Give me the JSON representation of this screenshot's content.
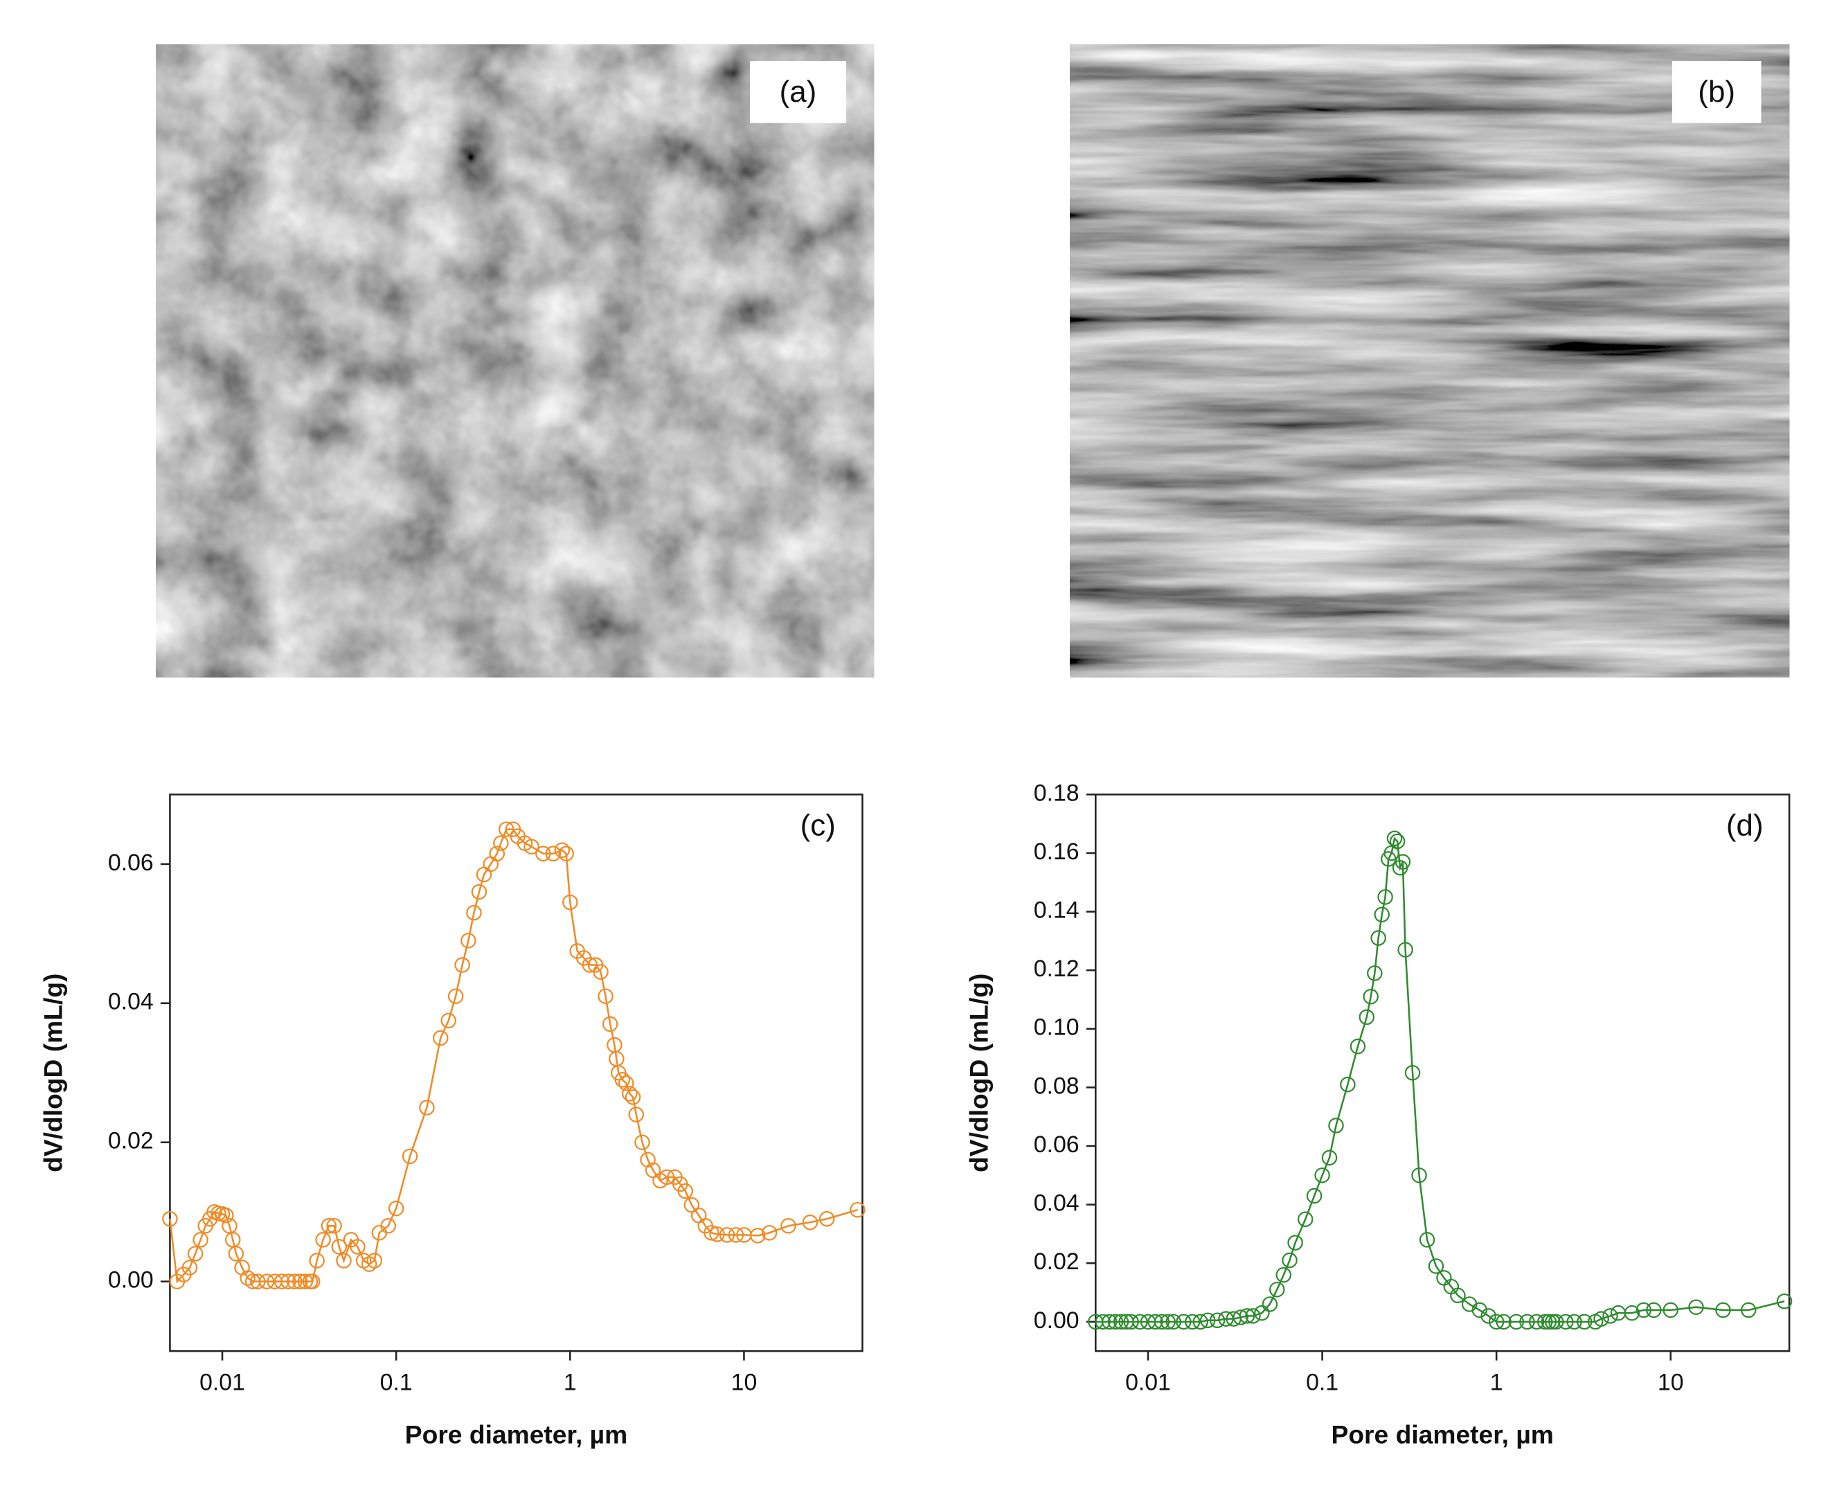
{
  "images": [
    {
      "label": "(a)"
    },
    {
      "label": "(b)"
    }
  ],
  "chart_data": [
    {
      "type": "line",
      "annotation": "(c)",
      "x_label": "Pore diameter, µm",
      "y_label": "dV/dlogD (mL/g)",
      "xscale": "log",
      "marker": "open-circle",
      "color": "#f08a24",
      "xlim": [
        0.005,
        48
      ],
      "ylim": [
        -0.01,
        0.07
      ],
      "xticks": [
        0.01,
        0.1,
        1,
        10
      ],
      "yticks": [
        {
          "value": 0,
          "label": "0.00"
        },
        0.02,
        0.04,
        0.06
      ],
      "x": [
        0.005,
        0.0055,
        0.006,
        0.0065,
        0.007,
        0.0075,
        0.008,
        0.0085,
        0.009,
        0.0095,
        0.01,
        0.0105,
        0.011,
        0.0115,
        0.012,
        0.013,
        0.014,
        0.015,
        0.016,
        0.018,
        0.02,
        0.022,
        0.024,
        0.026,
        0.028,
        0.03,
        0.032,
        0.033,
        0.035,
        0.038,
        0.041,
        0.044,
        0.047,
        0.05,
        0.055,
        0.06,
        0.065,
        0.07,
        0.075,
        0.08,
        0.09,
        0.1,
        0.12,
        0.15,
        0.18,
        0.2,
        0.22,
        0.24,
        0.26,
        0.28,
        0.3,
        0.32,
        0.35,
        0.38,
        0.4,
        0.43,
        0.47,
        0.5,
        0.55,
        0.6,
        0.7,
        0.8,
        0.9,
        0.95,
        1.0,
        1.1,
        1.2,
        1.3,
        1.4,
        1.5,
        1.6,
        1.7,
        1.8,
        1.85,
        1.9,
        2.0,
        2.1,
        2.2,
        2.3,
        2.4,
        2.6,
        2.8,
        3.0,
        3.3,
        3.6,
        4.0,
        4.3,
        4.6,
        5.0,
        5.5,
        6.0,
        6.5,
        7,
        8,
        9,
        10,
        12,
        14,
        18,
        24,
        30,
        45
      ],
      "values": [
        0.009,
        0.0,
        0.001,
        0.002,
        0.004,
        0.006,
        0.008,
        0.009,
        0.01,
        0.0098,
        0.0097,
        0.0095,
        0.008,
        0.006,
        0.004,
        0.002,
        0.0005,
        0.0,
        0.0,
        0.0,
        0.0,
        0.0,
        0.0,
        0.0,
        0.0,
        0.0,
        0.0,
        0.0,
        0.003,
        0.006,
        0.008,
        0.008,
        0.005,
        0.003,
        0.006,
        0.005,
        0.003,
        0.0025,
        0.003,
        0.007,
        0.008,
        0.0105,
        0.018,
        0.025,
        0.035,
        0.0375,
        0.041,
        0.0455,
        0.049,
        0.053,
        0.056,
        0.0585,
        0.06,
        0.0615,
        0.063,
        0.065,
        0.065,
        0.064,
        0.063,
        0.0625,
        0.0615,
        0.0615,
        0.062,
        0.0615,
        0.0545,
        0.0475,
        0.0465,
        0.0455,
        0.0455,
        0.0445,
        0.041,
        0.037,
        0.034,
        0.032,
        0.03,
        0.029,
        0.0285,
        0.027,
        0.0265,
        0.024,
        0.02,
        0.0175,
        0.016,
        0.0145,
        0.015,
        0.015,
        0.014,
        0.013,
        0.011,
        0.0095,
        0.008,
        0.007,
        0.0068,
        0.0067,
        0.0067,
        0.0067,
        0.0066,
        0.007,
        0.008,
        0.0085,
        0.009,
        0.0103
      ]
    },
    {
      "type": "line",
      "annotation": "(d)",
      "x_label": "Pore diameter, µm",
      "y_label": "dV/dlogD (mL/g)",
      "xscale": "log",
      "marker": "open-circle",
      "color": "#2e8b2e",
      "xlim": [
        0.005,
        48
      ],
      "ylim": [
        -0.01,
        0.18
      ],
      "xticks": [
        0.01,
        0.1,
        1,
        10
      ],
      "yticks": [
        {
          "value": 0,
          "label": "0.00"
        },
        0.02,
        0.04,
        0.06,
        0.08,
        {
          "value": 0.1,
          "label": "0.10"
        },
        0.12,
        0.14,
        0.16,
        0.18
      ],
      "x": [
        0.005,
        0.0055,
        0.006,
        0.0065,
        0.007,
        0.0075,
        0.008,
        0.009,
        0.01,
        0.011,
        0.012,
        0.013,
        0.014,
        0.016,
        0.018,
        0.02,
        0.022,
        0.025,
        0.028,
        0.031,
        0.034,
        0.037,
        0.04,
        0.045,
        0.05,
        0.055,
        0.06,
        0.065,
        0.07,
        0.08,
        0.09,
        0.1,
        0.11,
        0.12,
        0.14,
        0.16,
        0.18,
        0.19,
        0.2,
        0.21,
        0.22,
        0.23,
        0.24,
        0.25,
        0.26,
        0.27,
        0.28,
        0.29,
        0.3,
        0.33,
        0.36,
        0.4,
        0.45,
        0.5,
        0.55,
        0.6,
        0.7,
        0.8,
        0.9,
        1.0,
        1.1,
        1.3,
        1.5,
        1.7,
        1.9,
        2.0,
        2.1,
        2.2,
        2.5,
        2.8,
        3.2,
        3.7,
        4,
        4.5,
        5,
        6,
        7,
        8,
        10,
        14,
        20,
        28,
        45
      ],
      "values": [
        0.0,
        0.0,
        0.0,
        0.0,
        0.0,
        0.0,
        0.0,
        0.0,
        0.0,
        0.0,
        0.0,
        0.0,
        0.0,
        0.0,
        0.0,
        0.0,
        0.0005,
        0.0005,
        0.001,
        0.001,
        0.0015,
        0.002,
        0.002,
        0.003,
        0.006,
        0.011,
        0.016,
        0.021,
        0.027,
        0.035,
        0.043,
        0.05,
        0.056,
        0.067,
        0.081,
        0.094,
        0.104,
        0.111,
        0.119,
        0.131,
        0.139,
        0.145,
        0.158,
        0.16,
        0.165,
        0.164,
        0.155,
        0.157,
        0.127,
        0.085,
        0.05,
        0.028,
        0.019,
        0.015,
        0.012,
        0.009,
        0.006,
        0.004,
        0.002,
        0.0,
        0.0,
        0.0,
        0.0,
        0.0,
        0.0,
        0.0,
        0.0,
        0.0,
        0.0,
        0.0,
        0.0,
        0.0,
        0.001,
        0.002,
        0.003,
        0.003,
        0.004,
        0.004,
        0.004,
        0.005,
        0.004,
        0.004,
        0.007
      ]
    }
  ]
}
